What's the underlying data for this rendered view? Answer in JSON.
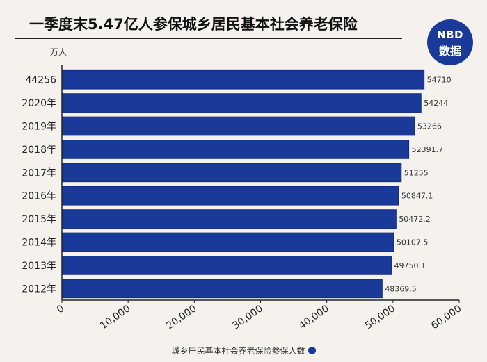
{
  "header": {
    "title": "一季度末5.47亿人参保城乡居民基本社会养老保险"
  },
  "logo": {
    "top": "NBD",
    "bottom": "数据"
  },
  "unit_label": "万人",
  "legend_label": "城乡居民基本社会养老保险参保人数",
  "colors": {
    "bar": "#1a3a9a",
    "bar_edge": "#0f2a80",
    "axis": "#222",
    "background": "#f5f2ee"
  },
  "chart_data": {
    "type": "bar",
    "orientation": "horizontal",
    "categories": [
      "44256",
      "2020年",
      "2019年",
      "2018年",
      "2017年",
      "2016年",
      "2015年",
      "2014年",
      "2013年",
      "2012年"
    ],
    "values": [
      54710,
      54244,
      53266,
      52391.7,
      51255,
      50847.1,
      50472.2,
      50107.5,
      49750.1,
      48369.5
    ],
    "value_labels": [
      "54710",
      "54244",
      "53266",
      "52391.7",
      "51255",
      "50847.1",
      "50472.2",
      "50107.5",
      "49750.1",
      "48369.5"
    ],
    "xlim": [
      0,
      60000
    ],
    "xticks": [
      0,
      10000,
      20000,
      30000,
      40000,
      50000,
      60000
    ],
    "xtick_labels": [
      "0",
      "10,000",
      "20,000",
      "30,000",
      "40,000",
      "50,000",
      "60,000"
    ],
    "ylabel": "万人",
    "legend": "城乡居民基本社会养老保险参保人数",
    "legend_position": "bottom",
    "grid": false
  }
}
